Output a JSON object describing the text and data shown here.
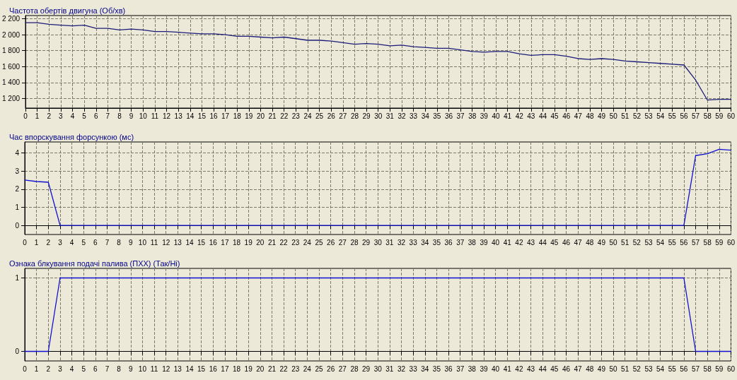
{
  "chart_data": [
    {
      "type": "line",
      "title": "Частота обертів двигуна (Об/хв)",
      "x": [
        0,
        1,
        2,
        3,
        4,
        5,
        6,
        7,
        8,
        9,
        10,
        11,
        12,
        13,
        14,
        15,
        16,
        17,
        18,
        19,
        20,
        21,
        22,
        23,
        24,
        25,
        26,
        27,
        28,
        29,
        30,
        31,
        32,
        33,
        34,
        35,
        36,
        37,
        38,
        39,
        40,
        41,
        42,
        43,
        44,
        45,
        46,
        47,
        48,
        49,
        50,
        51,
        52,
        53,
        54,
        55,
        56,
        57,
        58,
        59,
        60
      ],
      "series": [
        {
          "color": "#1c1c78",
          "values": [
            2150,
            2150,
            2130,
            2120,
            2110,
            2120,
            2080,
            2080,
            2060,
            2070,
            2060,
            2040,
            2040,
            2030,
            2020,
            2010,
            2010,
            2000,
            1980,
            1980,
            1970,
            1960,
            1970,
            1950,
            1930,
            1930,
            1920,
            1900,
            1880,
            1890,
            1880,
            1860,
            1870,
            1850,
            1840,
            1830,
            1830,
            1810,
            1790,
            1780,
            1790,
            1790,
            1760,
            1740,
            1750,
            1750,
            1730,
            1700,
            1690,
            1700,
            1690,
            1670,
            1660,
            1650,
            1640,
            1630,
            1620,
            1430,
            1180,
            1190,
            1190
          ]
        }
      ],
      "xlim": [
        0,
        60
      ],
      "xticks": [
        0,
        1,
        2,
        3,
        4,
        5,
        6,
        7,
        8,
        9,
        10,
        11,
        12,
        13,
        14,
        15,
        16,
        17,
        18,
        19,
        20,
        21,
        22,
        23,
        24,
        25,
        26,
        27,
        28,
        29,
        30,
        31,
        32,
        33,
        34,
        35,
        36,
        37,
        38,
        39,
        40,
        41,
        42,
        43,
        44,
        45,
        46,
        47,
        48,
        49,
        50,
        51,
        52,
        53,
        54,
        55,
        56,
        57,
        58,
        59,
        60
      ],
      "ylim": [
        1080,
        2240
      ],
      "yticks": [
        {
          "value": 1200,
          "label": "1 200"
        },
        {
          "value": 1400,
          "label": "1 400"
        },
        {
          "value": 1600,
          "label": "1 600"
        },
        {
          "value": 1800,
          "label": "1 800"
        },
        {
          "value": 2000,
          "label": "2 000"
        },
        {
          "value": 2200,
          "label": "2 200"
        }
      ],
      "grid": true,
      "marker": "none"
    },
    {
      "type": "line",
      "title": "Час впорскування форсункою (мс)",
      "x": [
        0,
        1,
        2,
        3,
        4,
        5,
        6,
        7,
        8,
        9,
        10,
        11,
        12,
        13,
        14,
        15,
        16,
        17,
        18,
        19,
        20,
        21,
        22,
        23,
        24,
        25,
        26,
        27,
        28,
        29,
        30,
        31,
        32,
        33,
        34,
        35,
        36,
        37,
        38,
        39,
        40,
        41,
        42,
        43,
        44,
        45,
        46,
        47,
        48,
        49,
        50,
        51,
        52,
        53,
        54,
        55,
        56,
        57,
        58,
        59,
        60
      ],
      "series": [
        {
          "color": "#1010d0",
          "values": [
            2.5,
            2.42,
            2.38,
            0,
            0,
            0,
            0,
            0,
            0,
            0,
            0,
            0,
            0,
            0,
            0,
            0,
            0,
            0,
            0,
            0,
            0,
            0,
            0,
            0,
            0,
            0,
            0,
            0,
            0,
            0,
            0,
            0,
            0,
            0,
            0,
            0,
            0,
            0,
            0,
            0,
            0,
            0,
            0,
            0,
            0,
            0,
            0,
            0,
            0,
            0,
            0,
            0,
            0,
            0,
            0,
            0,
            0,
            3.85,
            3.95,
            4.2,
            4.15
          ]
        }
      ],
      "xlim": [
        0,
        60
      ],
      "xticks": [
        0,
        1,
        2,
        3,
        4,
        5,
        6,
        7,
        8,
        9,
        10,
        11,
        12,
        13,
        14,
        15,
        16,
        17,
        18,
        19,
        20,
        21,
        22,
        23,
        24,
        25,
        26,
        27,
        28,
        29,
        30,
        31,
        32,
        33,
        34,
        35,
        36,
        37,
        38,
        39,
        40,
        41,
        42,
        43,
        44,
        45,
        46,
        47,
        48,
        49,
        50,
        51,
        52,
        53,
        54,
        55,
        56,
        57,
        58,
        59,
        60
      ],
      "ylim": [
        -0.5,
        4.6
      ],
      "yticks": [
        0,
        1,
        2,
        3,
        4
      ],
      "grid": true,
      "marker": "none"
    },
    {
      "type": "line",
      "title": "Ознака блкування подачі палива (ПХХ) (Так/Ні)",
      "x": [
        0,
        1,
        2,
        3,
        4,
        5,
        6,
        7,
        8,
        9,
        10,
        11,
        12,
        13,
        14,
        15,
        16,
        17,
        18,
        19,
        20,
        21,
        22,
        23,
        24,
        25,
        26,
        27,
        28,
        29,
        30,
        31,
        32,
        33,
        34,
        35,
        36,
        37,
        38,
        39,
        40,
        41,
        42,
        43,
        44,
        45,
        46,
        47,
        48,
        49,
        50,
        51,
        52,
        53,
        54,
        55,
        56,
        57,
        58,
        59,
        60
      ],
      "series": [
        {
          "color": "#1010d0",
          "values": [
            0,
            0,
            0,
            1,
            1,
            1,
            1,
            1,
            1,
            1,
            1,
            1,
            1,
            1,
            1,
            1,
            1,
            1,
            1,
            1,
            1,
            1,
            1,
            1,
            1,
            1,
            1,
            1,
            1,
            1,
            1,
            1,
            1,
            1,
            1,
            1,
            1,
            1,
            1,
            1,
            1,
            1,
            1,
            1,
            1,
            1,
            1,
            1,
            1,
            1,
            1,
            1,
            1,
            1,
            1,
            1,
            1,
            0,
            0,
            0,
            0
          ]
        }
      ],
      "xlim": [
        0,
        60
      ],
      "xticks": [
        0,
        1,
        2,
        3,
        4,
        5,
        6,
        7,
        8,
        9,
        10,
        11,
        12,
        13,
        14,
        15,
        16,
        17,
        18,
        19,
        20,
        21,
        22,
        23,
        24,
        25,
        26,
        27,
        28,
        29,
        30,
        31,
        32,
        33,
        34,
        35,
        36,
        37,
        38,
        39,
        40,
        41,
        42,
        43,
        44,
        45,
        46,
        47,
        48,
        49,
        50,
        51,
        52,
        53,
        54,
        55,
        56,
        57,
        58,
        59,
        60
      ],
      "ylim": [
        -0.13,
        1.13
      ],
      "yticks": [
        0,
        1
      ],
      "grid": true,
      "marker": "none"
    }
  ]
}
